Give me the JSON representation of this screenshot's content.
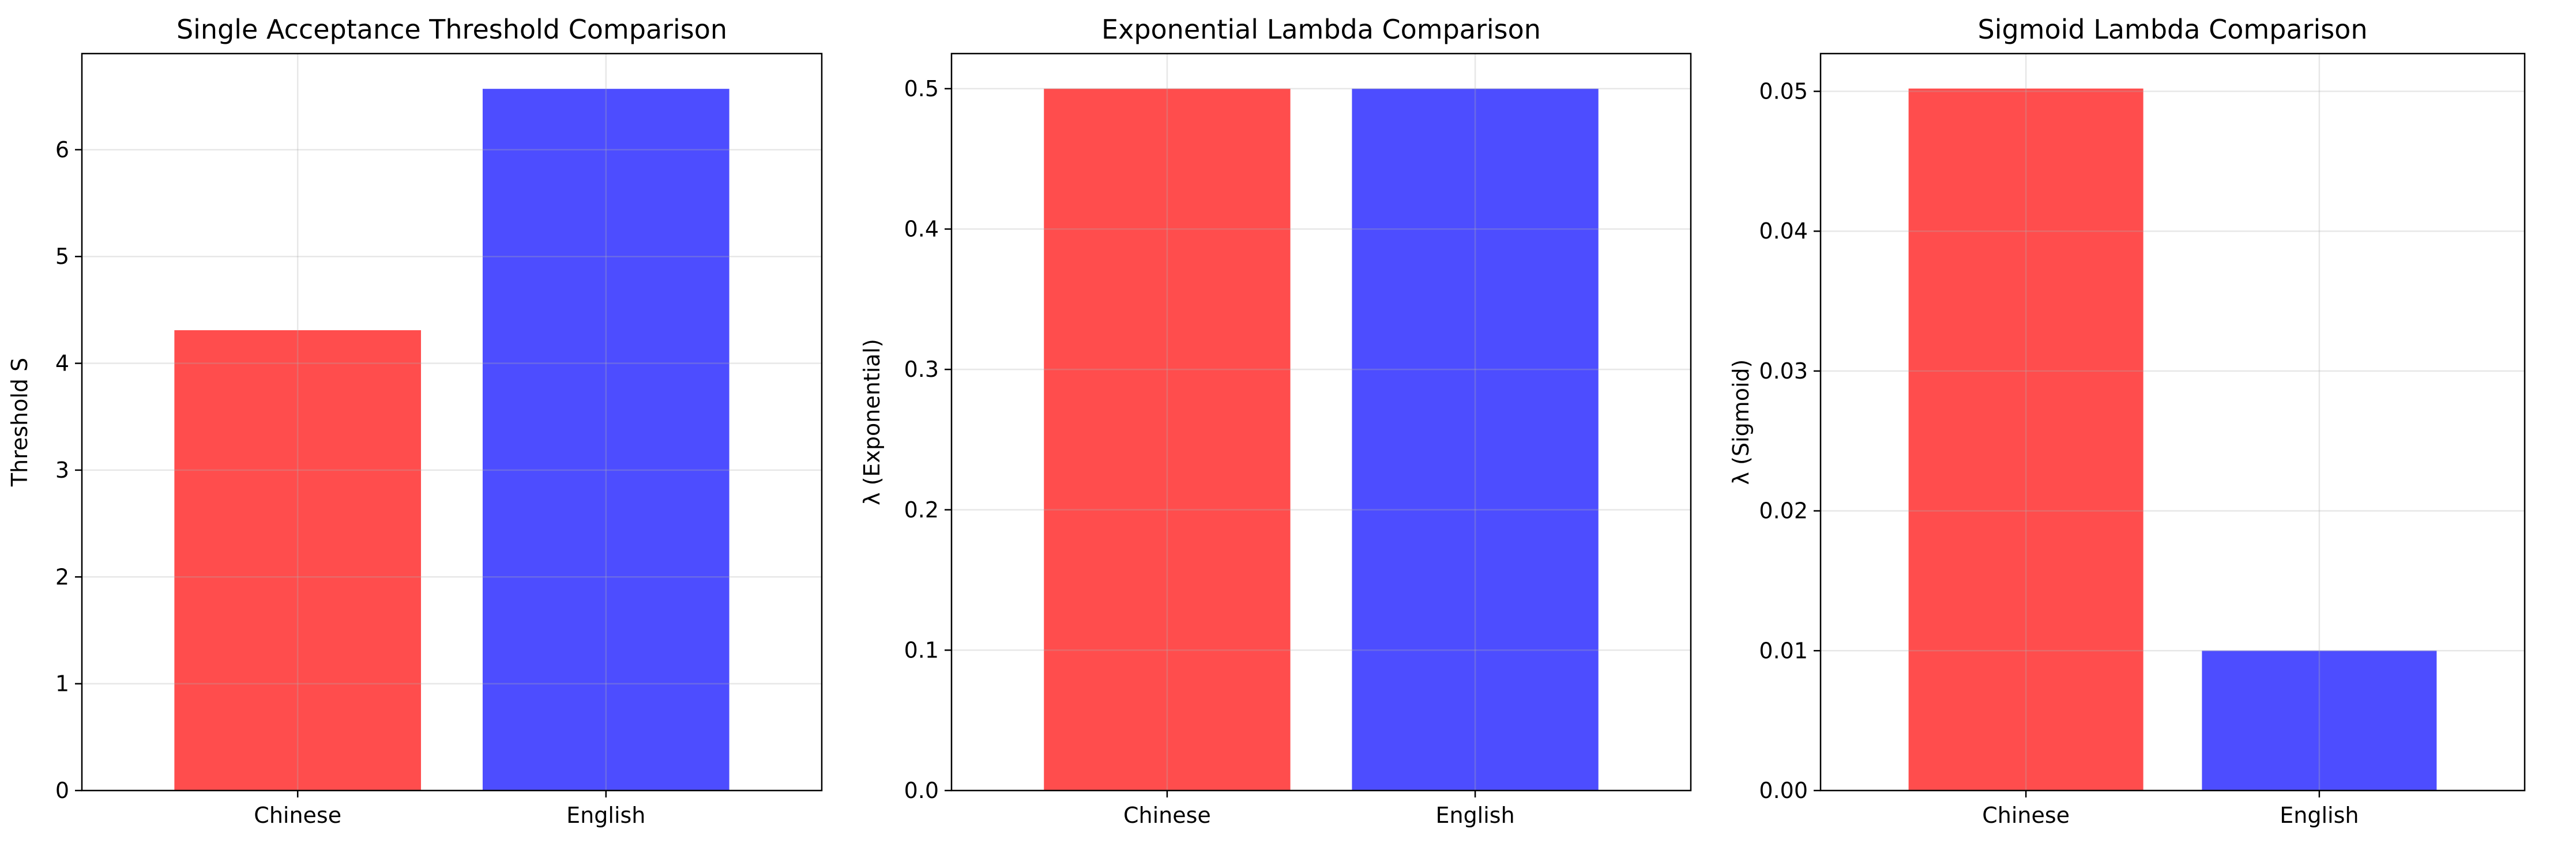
{
  "chart_data": [
    {
      "type": "bar",
      "title": "Single Acceptance Threshold Comparison",
      "xlabel": "",
      "ylabel": "Threshold S",
      "categories": [
        "Chinese",
        "English"
      ],
      "values": [
        4.31,
        6.57
      ],
      "colors": [
        "#ff4d4d",
        "#4d4dff"
      ],
      "ylim": [
        0,
        6.9
      ],
      "yticks": [
        0,
        1,
        2,
        3,
        4,
        5,
        6
      ],
      "ytick_labels": [
        "0",
        "1",
        "2",
        "3",
        "4",
        "5",
        "6"
      ],
      "grid": true
    },
    {
      "type": "bar",
      "title": "Exponential Lambda Comparison",
      "xlabel": "",
      "ylabel": "λ (Exponential)",
      "categories": [
        "Chinese",
        "English"
      ],
      "values": [
        0.5,
        0.5
      ],
      "colors": [
        "#ff4d4d",
        "#4d4dff"
      ],
      "ylim": [
        0,
        0.525
      ],
      "yticks": [
        0,
        0.1,
        0.2,
        0.3,
        0.4,
        0.5
      ],
      "ytick_labels": [
        "0.0",
        "0.1",
        "0.2",
        "0.3",
        "0.4",
        "0.5"
      ],
      "grid": true
    },
    {
      "type": "bar",
      "title": "Sigmoid Lambda Comparison",
      "xlabel": "",
      "ylabel": "λ (Sigmoid)",
      "categories": [
        "Chinese",
        "English"
      ],
      "values": [
        0.0502,
        0.01
      ],
      "colors": [
        "#ff4d4d",
        "#4d4dff"
      ],
      "ylim": [
        0,
        0.0527
      ],
      "yticks": [
        0,
        0.01,
        0.02,
        0.03,
        0.04,
        0.05
      ],
      "ytick_labels": [
        "0.00",
        "0.01",
        "0.02",
        "0.03",
        "0.04",
        "0.05"
      ],
      "grid": true
    }
  ]
}
